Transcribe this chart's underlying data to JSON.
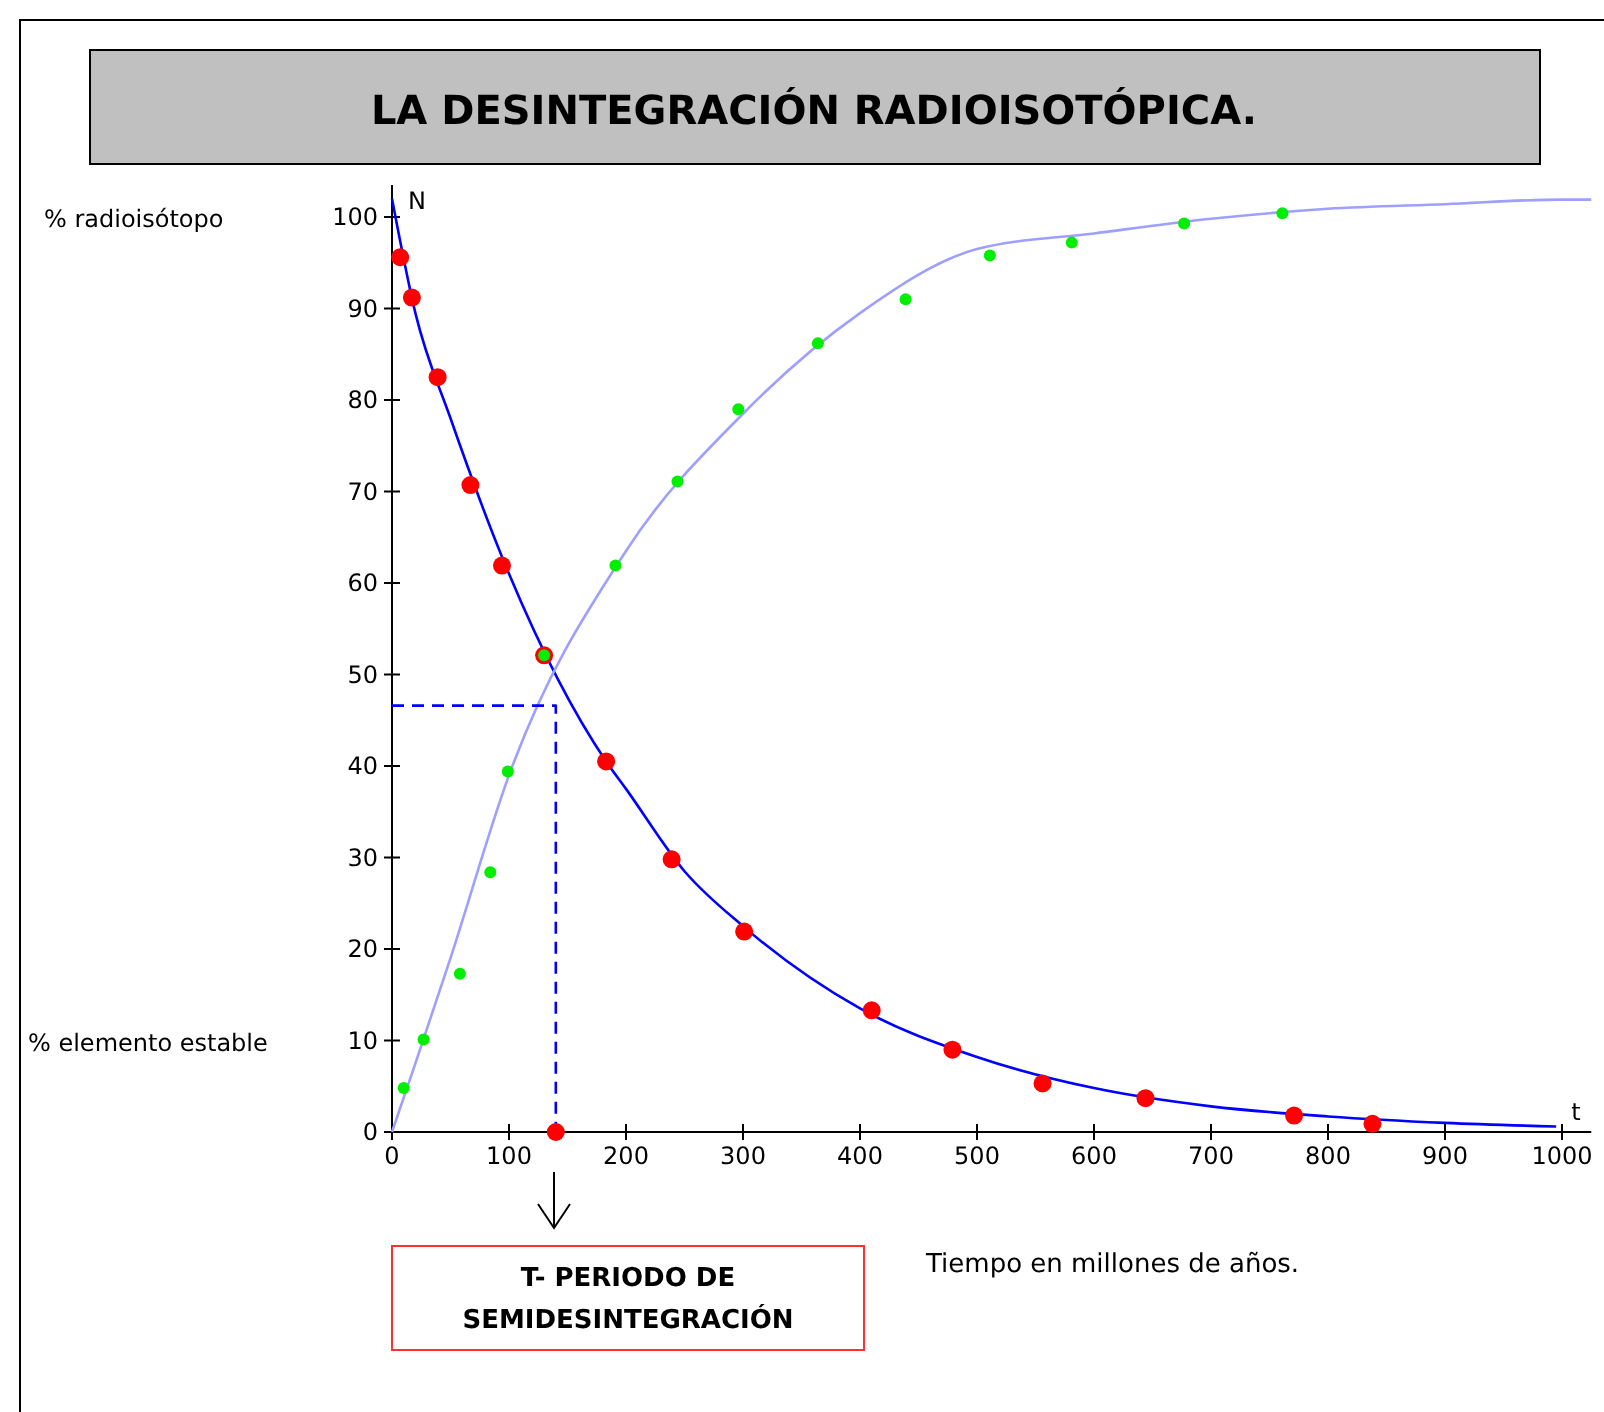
{
  "chart_data": {
    "type": "scatter",
    "title": "LA DESINTEGRACIÓN RADIOISOTÓPICA.",
    "xlabel": "Tiempo en millones de años.",
    "ylabel": "% radioisótopo",
    "annotations": [
      "% elemento estable",
      "N",
      "t",
      "T- PERIODO DE SEMIDESINTEGRACIÓN"
    ],
    "xlim": [
      0,
      1025
    ],
    "ylim": [
      0,
      103.5
    ],
    "xticks": [
      0,
      100,
      200,
      300,
      400,
      500,
      600,
      700,
      800,
      900,
      1000
    ],
    "yticks": [
      0,
      10,
      20,
      30,
      40,
      50,
      60,
      70,
      80,
      90,
      100
    ],
    "series": [
      {
        "type": "line",
        "marker": "none",
        "color": "#0000ff",
        "x": [
          0,
          20,
          50,
          100,
          183,
          200,
          250,
          300,
          400,
          500,
          600,
          700,
          800,
          900,
          995
        ],
        "values": [
          102,
          89.5,
          78,
          61,
          40.5,
          37.5,
          28.5,
          22.5,
          13.5,
          8.2,
          4.8,
          2.8,
          1.7,
          1,
          0.6
        ]
      },
      {
        "type": "line",
        "marker": "none",
        "color": "#9f9fff",
        "x": [
          0,
          20,
          50,
          100,
          200,
          300,
          400,
          500,
          600,
          700,
          800,
          900,
          1000,
          1025
        ],
        "values": [
          0,
          7.5,
          19,
          39,
          63.5,
          78.5,
          89.5,
          96.5,
          98.2,
          99.8,
          100.9,
          101.4,
          101.9,
          101.9
        ]
      },
      {
        "type": "line",
        "marker": "none",
        "color": "#0000ff",
        "line_style": "dashed",
        "x": [
          0,
          140,
          140
        ],
        "values": [
          46.6,
          46.6,
          0
        ]
      },
      {
        "marker": "circle",
        "color": "#ff0000",
        "x": [
          7,
          17,
          39,
          67,
          94,
          130,
          183,
          239,
          301,
          410,
          479,
          556,
          644,
          771,
          838
        ],
        "values": [
          95.6,
          91.2,
          82.5,
          70.7,
          61.9,
          52.1,
          40.5,
          29.8,
          21.9,
          13.3,
          9,
          5.3,
          3.7,
          1.8,
          0.9
        ]
      },
      {
        "marker": "circle",
        "color": "#00ee00",
        "x": [
          10,
          27,
          58,
          84,
          99,
          130,
          191,
          244,
          296,
          364,
          439,
          511,
          581,
          677,
          761
        ],
        "values": [
          4.8,
          10.1,
          17.3,
          28.4,
          39.4,
          52.1,
          61.9,
          71.1,
          79,
          86.2,
          91,
          95.8,
          97.2,
          99.3,
          100.4
        ]
      },
      {
        "marker": "circle",
        "color": "#ff0000",
        "x": [
          140
        ],
        "values": [
          0
        ]
      }
    ]
  }
}
